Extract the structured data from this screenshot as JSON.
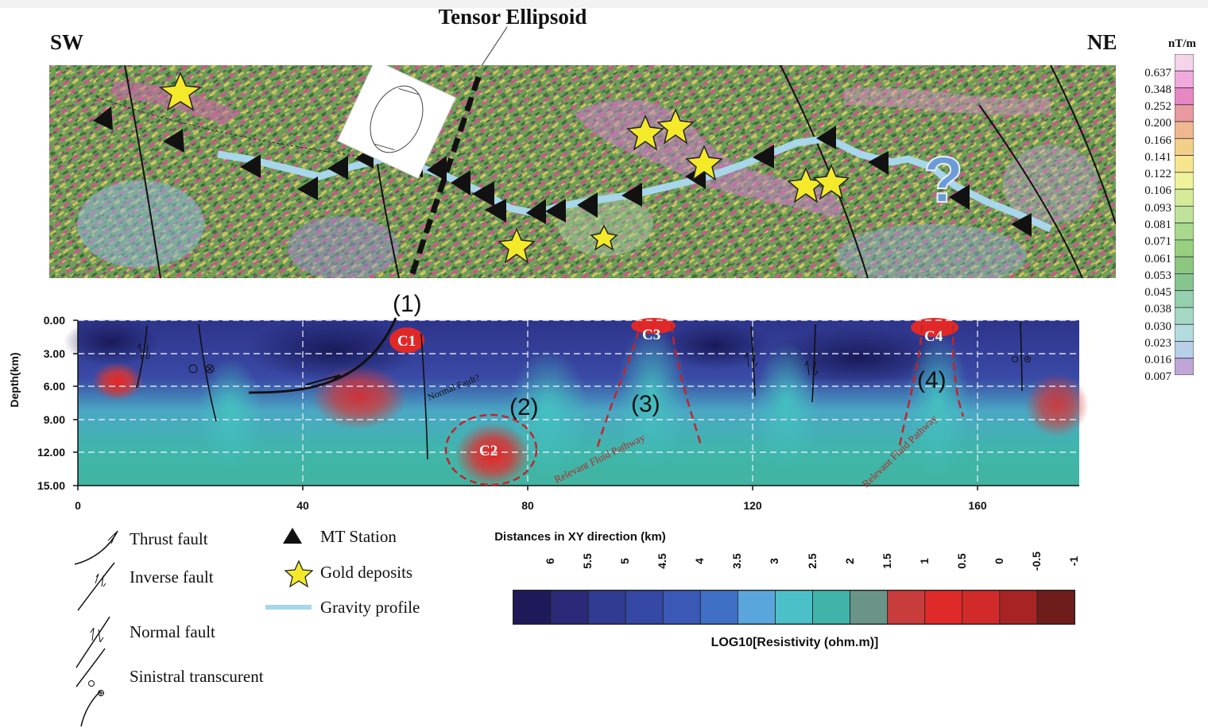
{
  "title": "Tensor Ellipsoid",
  "direction_left": "SW",
  "direction_right": "NE",
  "magnetic_scale": {
    "unit": "nT/m",
    "values": [
      "0.637",
      "0.348",
      "0.252",
      "0.200",
      "0.166",
      "0.141",
      "0.122",
      "0.106",
      "0.093",
      "0.081",
      "0.071",
      "0.061",
      "0.053",
      "0.045",
      "0.038",
      "0.030",
      "0.023",
      "0.016",
      "0.007"
    ],
    "colors": [
      "#f6d4ec",
      "#f0aadc",
      "#e688c4",
      "#e89aa0",
      "#f0b890",
      "#f3d08a",
      "#f6e690",
      "#eef29a",
      "#d6ea9a",
      "#bfe29a",
      "#a8d98c",
      "#98d080",
      "#8cc780",
      "#86c490",
      "#94cfae",
      "#a6d8c4",
      "#b4dce0",
      "#b8cfe8",
      "#c0a6d8"
    ]
  },
  "section": {
    "ylabel": "Depth(km)",
    "xlabel": "Distances in XY direction (km)",
    "y_ticks": [
      "0.00",
      "3.00",
      "6.00",
      "9.00",
      "12.00",
      "15.00"
    ],
    "x_ticks": [
      "0",
      "40",
      "80",
      "120",
      "160"
    ],
    "anomalies": [
      "C1",
      "C2",
      "C3",
      "C4"
    ],
    "markers": [
      "(1)",
      "(2)",
      "(3)",
      "(4)"
    ],
    "fault_annotation": "Normal Fault?",
    "pathway_label": "Relevant Fluid Pathway"
  },
  "legend": {
    "thrust": "Thrust fault",
    "inverse": "Inverse fault",
    "normal": "Normal fault",
    "sinistral": "Sinistral transcurent",
    "mt_station": "MT Station",
    "gold": "Gold deposits",
    "gravity": "Gravity profile"
  },
  "resistivity_scale": {
    "label": "LOG10[Resistivity (ohm.m)]",
    "ticks": [
      "6",
      "5.5",
      "5",
      "4.5",
      "4",
      "3.5",
      "3",
      "2.5",
      "2",
      "1.5",
      "1",
      "0.5",
      "0",
      "-0.5",
      "-1"
    ],
    "colors": [
      "#1e1a5a",
      "#2a2a78",
      "#303c92",
      "#3448a4",
      "#3a58b6",
      "#4070c6",
      "#5aa6dc",
      "#4cc0c8",
      "#40b4a8",
      "#6a9488",
      "#c83c3c",
      "#e02a2a",
      "#d22a2a",
      "#a82424",
      "#6e1c1c"
    ]
  }
}
